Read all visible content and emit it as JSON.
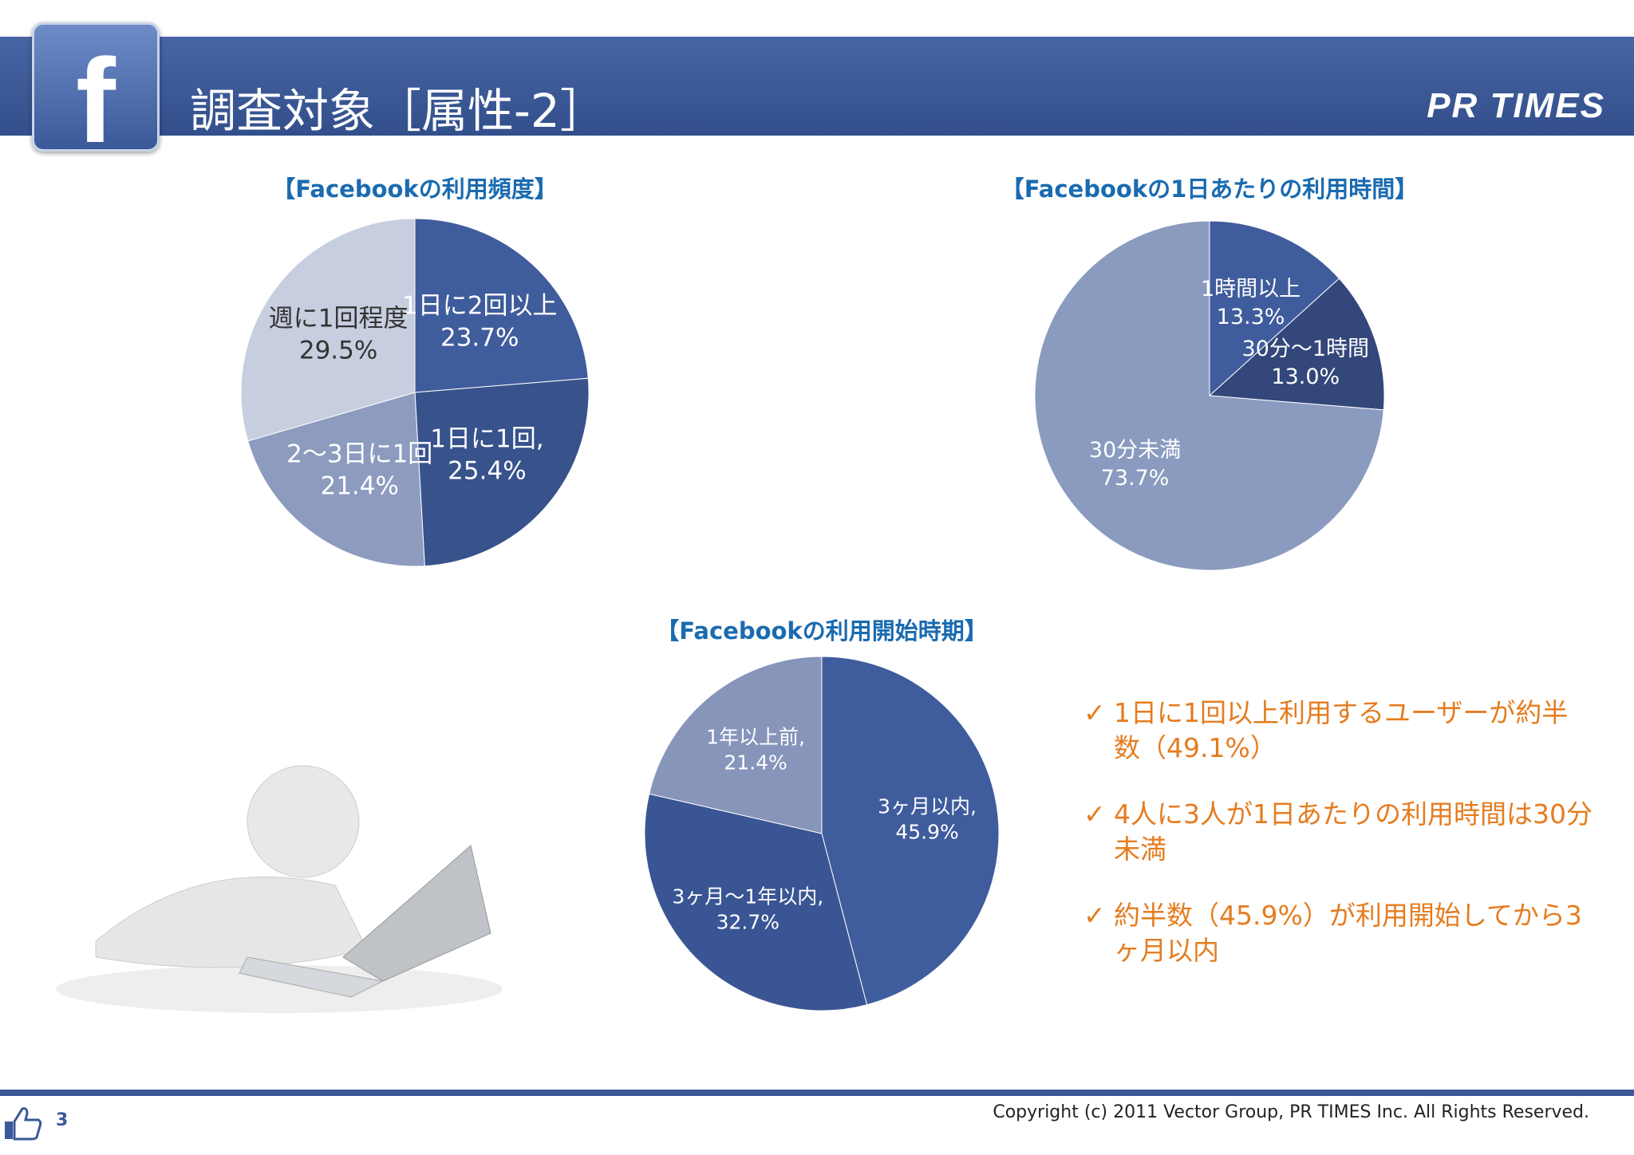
{
  "header": {
    "title": "調査対象［属性-2］",
    "brand": "PR TIMES"
  },
  "chart_data": [
    {
      "type": "pie",
      "title": "【Facebookの利用頻度】",
      "categories": [
        "1日に2回以上",
        "1日に1回,",
        "2～3日に1回",
        "週に1回程度"
      ],
      "values": [
        23.7,
        25.4,
        21.4,
        29.5
      ],
      "value_labels": [
        "23.7%",
        "25.4%",
        "21.4%",
        "29.5%"
      ],
      "colors": [
        "#3f5c9c",
        "#38528c",
        "#8c9bbe",
        "#c6cedf"
      ]
    },
    {
      "type": "pie",
      "title": "【Facebookの1日あたりの利用時間】",
      "categories": [
        "1時間以上",
        "30分～1時間",
        "30分未満"
      ],
      "values": [
        13.3,
        13.0,
        73.7
      ],
      "value_labels": [
        "13.3%",
        "13.0%",
        "73.7%"
      ],
      "colors": [
        "#3f5c9c",
        "#33477a",
        "#8a9bbf"
      ]
    },
    {
      "type": "pie",
      "title": "【Facebookの利用開始時期】",
      "categories": [
        "3ヶ月以内,",
        "3ヶ月～1年以内,",
        "1年以上前,"
      ],
      "values": [
        45.9,
        32.7,
        21.4
      ],
      "value_labels": [
        "45.9%",
        "32.7%",
        "21.4%"
      ],
      "colors": [
        "#3f5c9c",
        "#3a5594",
        "#8795bb"
      ]
    }
  ],
  "notes": [
    "1日に1回以上利用するユーザーが約半数（49.1%）",
    "4人に3人が1日あたりの利用時間は30分未満",
    "約半数（45.9%）が利用開始してから3ヶ月以内"
  ],
  "footer": {
    "page": "3",
    "copyright": "Copyright (c) 2011 Vector Group, PR TIMES Inc. All Rights Reserved."
  }
}
